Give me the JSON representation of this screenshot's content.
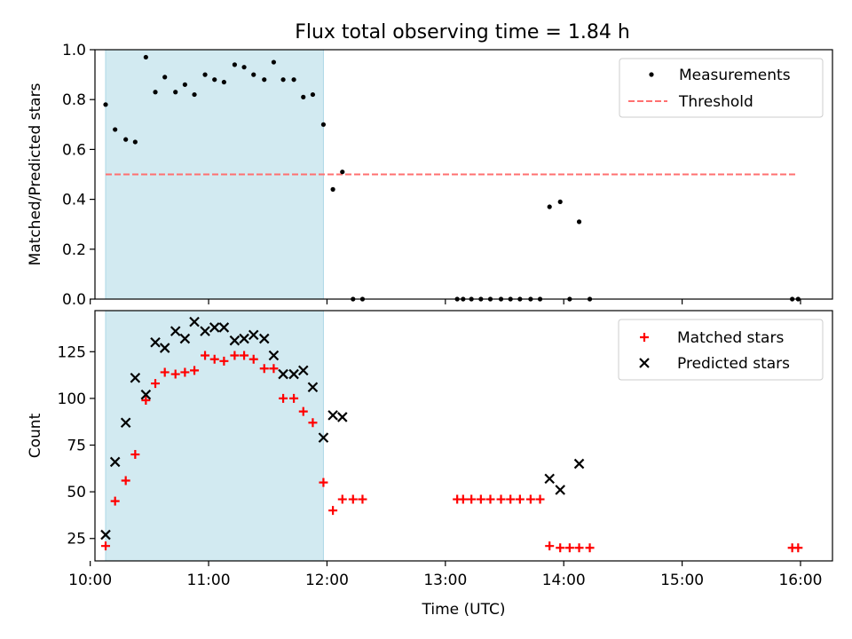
{
  "title": "Flux total observing time = 1.84 h",
  "colors": {
    "measurement": "#000000",
    "threshold": "#ff7070",
    "matched": "#ff0000",
    "predicted": "#000000",
    "shade": "#add8e6"
  },
  "chart_data": [
    {
      "type": "scatter",
      "ylabel": "Matched/Predicted stars",
      "xlim": [
        10.04,
        16.27
      ],
      "ylim": [
        0,
        1.0
      ],
      "yticks": [
        {
          "v": 0.0,
          "label": "0.0"
        },
        {
          "v": 0.2,
          "label": "0.2"
        },
        {
          "v": 0.4,
          "label": "0.4"
        },
        {
          "v": 0.6,
          "label": "0.6"
        },
        {
          "v": 0.8,
          "label": "0.8"
        },
        {
          "v": 1.0,
          "label": "1.0"
        }
      ],
      "shaded_span": [
        10.13,
        11.97
      ],
      "legend_position": "top-right",
      "legend": [
        {
          "key": "measurements",
          "label": "Measurements"
        },
        {
          "key": "threshold",
          "label": "Threshold"
        }
      ],
      "threshold": {
        "y": 0.5,
        "x": [
          10.13,
          15.97
        ]
      },
      "measurements": {
        "x": [
          10.13,
          10.21,
          10.3,
          10.38,
          10.47,
          10.55,
          10.63,
          10.72,
          10.8,
          10.88,
          10.97,
          11.05,
          11.13,
          11.22,
          11.3,
          11.38,
          11.47,
          11.55,
          11.63,
          11.72,
          11.8,
          11.88,
          11.97,
          12.05,
          12.13,
          12.22,
          12.3,
          13.1,
          13.15,
          13.22,
          13.3,
          13.38,
          13.47,
          13.55,
          13.63,
          13.72,
          13.8,
          13.88,
          13.97,
          14.05,
          14.13,
          14.22,
          15.93,
          15.98
        ],
        "y": [
          0.78,
          0.68,
          0.64,
          0.63,
          0.97,
          0.83,
          0.89,
          0.83,
          0.86,
          0.82,
          0.9,
          0.88,
          0.87,
          0.94,
          0.93,
          0.9,
          0.88,
          0.95,
          0.88,
          0.88,
          0.81,
          0.82,
          0.7,
          0.44,
          0.51,
          0.0,
          0.0,
          0.0,
          0.0,
          0.0,
          0.0,
          0.0,
          0.0,
          0.0,
          0.0,
          0.0,
          0.0,
          0.37,
          0.39,
          0.0,
          0.31,
          0.0,
          0.0,
          0.0
        ]
      }
    },
    {
      "type": "scatter",
      "xlabel": "Time (UTC)",
      "ylabel": "Count",
      "xlim": [
        10.04,
        16.27
      ],
      "ylim": [
        13,
        147
      ],
      "xticks": [
        {
          "v": 10,
          "label": "10:00"
        },
        {
          "v": 11,
          "label": "11:00"
        },
        {
          "v": 12,
          "label": "12:00"
        },
        {
          "v": 13,
          "label": "13:00"
        },
        {
          "v": 14,
          "label": "14:00"
        },
        {
          "v": 15,
          "label": "15:00"
        },
        {
          "v": 16,
          "label": "16:00"
        }
      ],
      "yticks": [
        {
          "v": 25,
          "label": "25"
        },
        {
          "v": 50,
          "label": "50"
        },
        {
          "v": 75,
          "label": "75"
        },
        {
          "v": 100,
          "label": "100"
        },
        {
          "v": 125,
          "label": "125"
        }
      ],
      "shaded_span": [
        10.13,
        11.97
      ],
      "legend_position": "top-right",
      "legend": [
        {
          "key": "matched",
          "label": "Matched stars"
        },
        {
          "key": "predicted",
          "label": "Predicted stars"
        }
      ],
      "matched": {
        "x": [
          10.13,
          10.21,
          10.3,
          10.38,
          10.47,
          10.55,
          10.63,
          10.72,
          10.8,
          10.88,
          10.97,
          11.05,
          11.13,
          11.22,
          11.3,
          11.38,
          11.47,
          11.55,
          11.63,
          11.72,
          11.8,
          11.88,
          11.97,
          12.05,
          12.13,
          12.22,
          12.3,
          13.1,
          13.15,
          13.22,
          13.3,
          13.38,
          13.47,
          13.55,
          13.63,
          13.72,
          13.8,
          13.88,
          13.97,
          14.05,
          14.13,
          14.22,
          15.93,
          15.98
        ],
        "y": [
          21,
          45,
          56,
          70,
          99,
          108,
          114,
          113,
          114,
          115,
          123,
          121,
          120,
          123,
          123,
          121,
          116,
          116,
          100,
          100,
          93,
          87,
          55,
          40,
          46,
          46,
          46,
          46,
          46,
          46,
          46,
          46,
          46,
          46,
          46,
          46,
          46,
          21,
          20,
          20,
          20,
          20,
          20,
          20
        ]
      },
      "predicted": {
        "x": [
          10.13,
          10.21,
          10.3,
          10.38,
          10.47,
          10.55,
          10.63,
          10.72,
          10.8,
          10.88,
          10.97,
          11.05,
          11.13,
          11.22,
          11.3,
          11.38,
          11.47,
          11.55,
          11.63,
          11.72,
          11.8,
          11.88,
          11.97,
          12.05,
          12.13,
          13.88,
          13.97,
          14.13
        ],
        "y": [
          27,
          66,
          87,
          111,
          102,
          130,
          127,
          136,
          132,
          141,
          136,
          138,
          138,
          131,
          132,
          134,
          132,
          123,
          113,
          113,
          115,
          106,
          79,
          91,
          90,
          57,
          51,
          65
        ]
      }
    }
  ]
}
